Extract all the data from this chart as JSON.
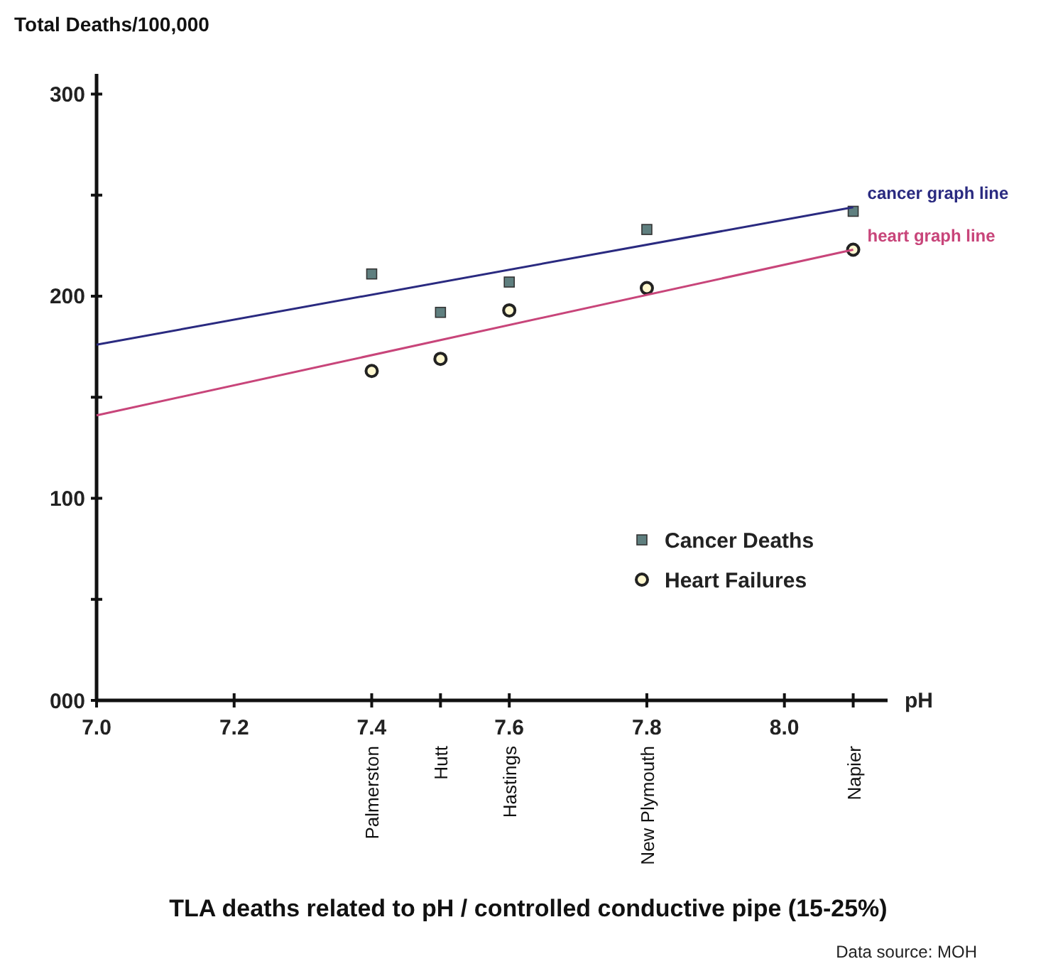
{
  "chart_data": {
    "type": "scatter",
    "title": "TLA deaths related to pH  /  controlled conductive pipe  (15-25%)",
    "xlabel": "pH",
    "ylabel": "Total Deaths/100,000",
    "xlim": [
      7.0,
      8.15
    ],
    "xticks": [
      {
        "value": 7.0,
        "label": "7.0"
      },
      7.2,
      7.4,
      {
        "value": 7.5,
        "label": null
      },
      7.6,
      7.8,
      {
        "value": 8.0,
        "label": "8.0"
      },
      {
        "value": 8.1,
        "label": null
      }
    ],
    "ylim": [
      0,
      310
    ],
    "yticks": [
      {
        "value": 0,
        "label": "000"
      },
      {
        "value": 50,
        "label": null
      },
      100,
      {
        "value": 150,
        "label": null
      },
      200,
      {
        "value": 250,
        "label": null
      },
      300
    ],
    "grid": false,
    "legend": "bottom right",
    "series": [
      {
        "name": "Cancer Deaths",
        "type": "scatter",
        "marker": "square",
        "color": "#5f7f7f",
        "x": [
          7.4,
          7.5,
          7.6,
          7.8,
          8.1
        ],
        "values": [
          211,
          192,
          207,
          233,
          242
        ]
      },
      {
        "name": "Heart Failures",
        "type": "scatter",
        "marker": "circle",
        "color": "#222222",
        "x": [
          7.4,
          7.5,
          7.6,
          7.8,
          8.1
        ],
        "values": [
          163,
          169,
          193,
          204,
          223
        ]
      },
      {
        "name": "cancer graph line",
        "type": "line",
        "marker": "none",
        "color": "#2a2a80",
        "x": [
          7.0,
          8.1
        ],
        "values": [
          176,
          244
        ]
      },
      {
        "name": "heart graph line",
        "type": "line",
        "marker": "none",
        "color": "#c8457a",
        "x": [
          7.0,
          8.1
        ],
        "values": [
          141,
          223
        ]
      }
    ],
    "annotations": [
      "Palmerston",
      "Hutt",
      "Hastings",
      "New Plymouth",
      "Napier",
      "Data source: MOH"
    ]
  }
}
